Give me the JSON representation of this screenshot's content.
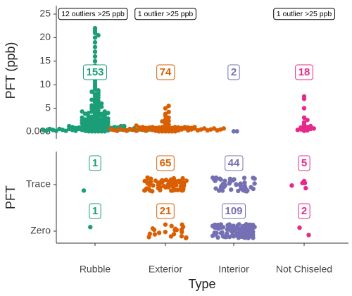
{
  "chart_data": [
    {
      "type": "beeswarm",
      "y_label": "PFT (ppb)",
      "ylim": [
        -1.5,
        26.8
      ],
      "yticks": [
        0.003,
        5,
        10,
        15,
        20,
        25
      ],
      "series": [
        {
          "name": "Rubble",
          "color": "#1b9e77",
          "count": 153,
          "annotation": "12 outliers >25 ppb",
          "values": [
            0.1,
            0.2,
            0.3,
            0.4,
            0.5,
            0.6,
            0.7,
            0.8,
            0.9,
            1,
            0.1,
            0.2,
            0.3,
            0.4,
            0.5,
            0.6,
            0.7,
            0.8,
            0.9,
            1,
            0.1,
            0.2,
            0.3,
            0.4,
            0.5,
            0.6,
            0.7,
            0.8,
            0.9,
            1,
            0.1,
            0.2,
            0.3,
            0.4,
            0.5,
            0.6,
            0.7,
            0.8,
            0.9,
            1,
            0.1,
            0.2,
            0.3,
            0.4,
            0.5,
            0.6,
            0.7,
            0.8,
            0.9,
            1,
            0.1,
            0.2,
            0.3,
            0.4,
            0.5,
            1.2,
            1.4,
            1.6,
            1.8,
            2,
            2.2,
            2.4,
            2.6,
            2.8,
            3,
            1.2,
            1.4,
            1.6,
            1.8,
            2,
            2.2,
            2.4,
            2.6,
            2.8,
            3,
            1.2,
            1.4,
            1.6,
            1.8,
            2,
            2.2,
            2.4,
            2.6,
            2.8,
            3,
            3.2,
            3.5,
            3.8,
            4,
            4.3,
            4.6,
            5,
            5.3,
            5.6,
            6,
            3.2,
            3.5,
            3.8,
            4,
            4.3,
            4.6,
            5,
            5.3,
            5.6,
            6,
            3.2,
            3.5,
            3.8,
            4,
            4.3,
            6.3,
            6.6,
            7,
            7.3,
            7.6,
            8,
            8.3,
            8.5,
            9,
            9.5,
            10,
            6.8,
            7.8,
            8.8,
            10.5,
            11,
            11.5,
            12,
            12.5,
            13,
            14,
            15,
            16,
            17,
            18,
            19,
            20,
            20.5,
            21,
            21.5,
            22
          ]
        },
        {
          "name": "Exterior",
          "color": "#d95f02",
          "count": 74,
          "annotation": "1 outlier >25 ppb",
          "values": [
            0.1,
            0.2,
            0.3,
            0.4,
            0.5,
            0.6,
            0.7,
            0.8,
            0.9,
            1,
            0.1,
            0.2,
            0.3,
            0.4,
            0.5,
            0.6,
            0.7,
            0.8,
            0.9,
            1,
            0.1,
            0.2,
            0.3,
            0.4,
            0.5,
            0.6,
            0.7,
            0.8,
            0.9,
            1,
            0.1,
            0.2,
            0.3,
            0.4,
            0.5,
            0.6,
            0.7,
            0.8,
            0.9,
            1,
            0.1,
            0.2,
            0.3,
            0.4,
            0.5,
            0.6,
            0.7,
            0.8,
            0.9,
            1,
            0.1,
            0.2,
            0.3,
            0.4,
            0.5,
            0.6,
            0.7,
            0.8,
            0.9,
            1,
            1.3,
            1.6,
            2,
            2.3,
            2.6,
            3,
            1.5,
            2.2,
            3.4,
            3.8,
            4.2,
            5,
            5.5
          ]
        },
        {
          "name": "Interior",
          "color": "#7570b3",
          "count": 2,
          "values": [
            0.1,
            0.1
          ]
        },
        {
          "name": "Not Chiseled",
          "color": "#e7298a",
          "count": 18,
          "annotation": "1 outlier >25 ppb",
          "values": [
            0.2,
            0.3,
            0.5,
            0.6,
            0.8,
            1,
            0.4,
            0.7,
            0.9,
            1.2,
            1.5,
            2,
            2.5,
            3,
            5,
            7,
            7.5
          ]
        }
      ]
    },
    {
      "type": "count-strip",
      "y_label": "PFT",
      "x_label": "Type",
      "categories": [
        "Trace",
        "Zero"
      ],
      "series": [
        {
          "color": "#1b9e77",
          "values": [
            1,
            1
          ]
        },
        {
          "color": "#d95f02",
          "values": [
            65,
            21
          ]
        },
        {
          "color": "#7570b3",
          "values": [
            44,
            109
          ]
        },
        {
          "color": "#e7298a",
          "values": [
            5,
            2
          ]
        }
      ]
    }
  ]
}
